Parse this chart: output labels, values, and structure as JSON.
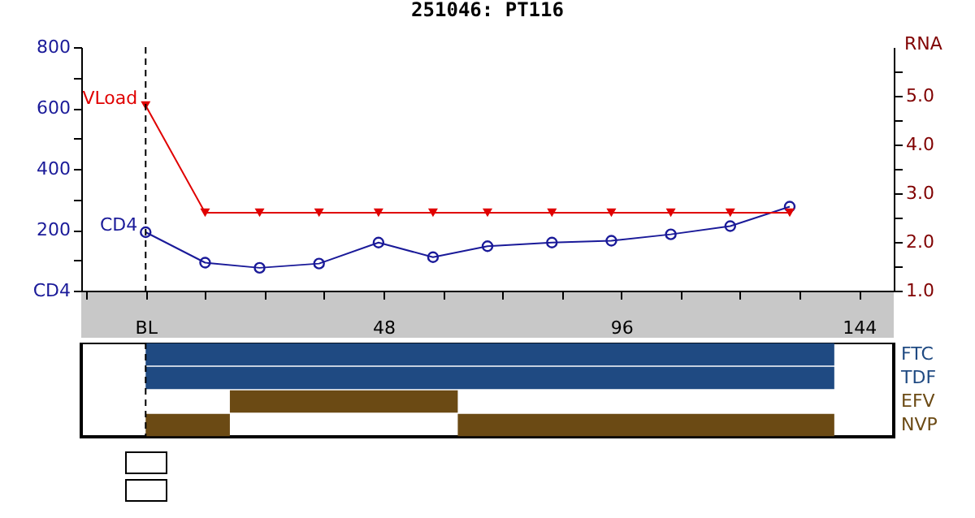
{
  "chart_data": [
    {
      "type": "line",
      "title": "251046: PT116",
      "y2label": "RNA",
      "x": [
        0,
        12,
        23,
        35,
        47,
        58,
        69,
        82,
        94,
        106,
        118,
        130
      ],
      "series": [
        {
          "name": "CD4",
          "color": "#1a1a99",
          "marker": "circle",
          "values": [
            192,
            92,
            75,
            89,
            158,
            110,
            146,
            158,
            164,
            185,
            212,
            276
          ]
        },
        {
          "name": "VLoad",
          "color": "#e00000",
          "marker": "triangle",
          "axis": "y2",
          "values": [
            4.8,
            2.6,
            2.6,
            2.6,
            2.6,
            2.6,
            2.6,
            2.6,
            2.6,
            2.6,
            2.6,
            2.6
          ]
        }
      ],
      "xlim": [
        -13,
        151
      ],
      "xticks": [
        {
          "value": -12,
          "label": null
        },
        {
          "value": 0,
          "label": "BL"
        },
        {
          "value": 12,
          "label": null
        },
        {
          "value": 24,
          "label": null
        },
        {
          "value": 36,
          "label": null
        },
        48,
        {
          "value": 60,
          "label": null
        },
        {
          "value": 72,
          "label": null
        },
        {
          "value": 84,
          "label": null
        },
        96,
        {
          "value": 108,
          "label": null
        },
        {
          "value": 120,
          "label": null
        },
        {
          "value": 132,
          "label": null
        },
        144
      ],
      "ylim": [
        0,
        800
      ],
      "yticks": [
        {
          "value": 0,
          "label": "CD4"
        },
        {
          "value": 100,
          "label": null
        },
        200,
        {
          "value": 300,
          "label": null
        },
        400,
        {
          "value": 500,
          "label": null
        },
        600,
        {
          "value": 700,
          "label": null
        },
        800
      ],
      "y2lim": [
        1,
        6
      ],
      "y2ticks": [
        {
          "value": 1,
          "label": "1.0"
        },
        {
          "value": 1.5,
          "label": null
        },
        {
          "value": 2,
          "label": "2.0"
        },
        {
          "value": 2.5,
          "label": null
        },
        {
          "value": 3,
          "label": "3.0"
        },
        {
          "value": 3.5,
          "label": null
        },
        {
          "value": 4,
          "label": "4.0"
        },
        {
          "value": 4.5,
          "label": null
        },
        {
          "value": 5,
          "label": "5.0"
        },
        {
          "value": 5.5,
          "label": null
        }
      ],
      "ref_lines": [
        {
          "axis": "x",
          "value": 0,
          "line_style": "dashed",
          "color": "#000000"
        }
      ],
      "grid": false
    },
    {
      "type": "bar",
      "orientation": "horizontal",
      "categories": [
        "FTC",
        "TDF",
        "EFV",
        "NVP"
      ],
      "series": [
        {
          "color": "#1f4a82",
          "values": [
            139,
            139,
            null,
            null
          ],
          "base": [
            0,
            0,
            null,
            null
          ]
        },
        {
          "color": "#6b4a14",
          "values": [
            null,
            null,
            46,
            17
          ],
          "base": [
            null,
            null,
            17,
            0
          ]
        },
        {
          "color": "#6b4a14",
          "values": [
            null,
            null,
            null,
            76
          ],
          "base": [
            null,
            null,
            null,
            63
          ]
        }
      ],
      "xlim": [
        -13,
        151
      ],
      "tick_labels": "y",
      "ref_lines": [
        {
          "axis": "x",
          "value": 0,
          "line_style": "dashed",
          "color": "#000000"
        }
      ]
    }
  ]
}
